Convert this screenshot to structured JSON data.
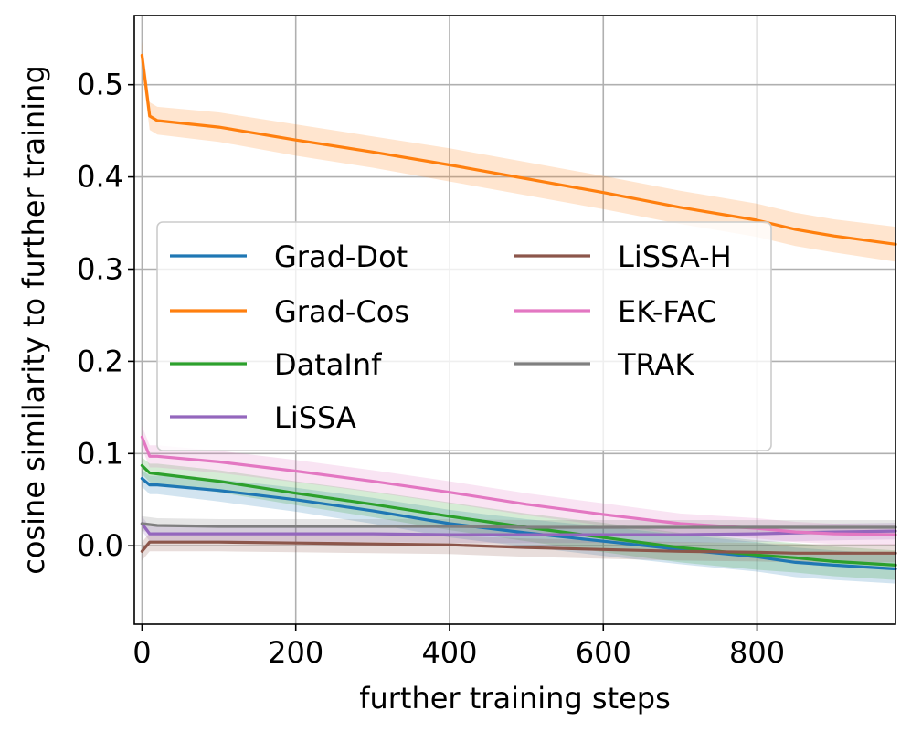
{
  "chart_data": {
    "type": "line",
    "title": "",
    "xlabel": "further training steps",
    "ylabel": "cosine similarity to further training",
    "xlim": [
      -10,
      980
    ],
    "ylim": [
      -0.085,
      0.575
    ],
    "xticks": [
      0,
      200,
      400,
      600,
      800
    ],
    "xtick_labels": [
      "0",
      "200",
      "400",
      "600",
      "800"
    ],
    "yticks": [
      0.0,
      0.1,
      0.2,
      0.3,
      0.4,
      0.5
    ],
    "ytick_labels": [
      "0.0",
      "0.1",
      "0.2",
      "0.3",
      "0.4",
      "0.5"
    ],
    "grid": true,
    "legend_position": "center-left",
    "series": [
      {
        "name": "Grad-Dot",
        "color": "#1f77b4",
        "x": [
          0,
          10,
          20,
          100,
          200,
          300,
          400,
          500,
          600,
          700,
          800,
          850,
          900,
          980
        ],
        "y": [
          0.073,
          0.066,
          0.066,
          0.06,
          0.05,
          0.038,
          0.024,
          0.014,
          0.005,
          -0.004,
          -0.012,
          -0.018,
          -0.021,
          -0.025
        ],
        "band": [
          0.009,
          0.01,
          0.01,
          0.012,
          0.013,
          0.014,
          0.015,
          0.015,
          0.016,
          0.016,
          0.016,
          0.016,
          0.016,
          0.016
        ]
      },
      {
        "name": "Grad-Cos",
        "color": "#ff7f0e",
        "x": [
          0,
          10,
          20,
          100,
          200,
          300,
          400,
          500,
          600,
          700,
          800,
          850,
          900,
          980
        ],
        "y": [
          0.532,
          0.466,
          0.461,
          0.454,
          0.44,
          0.427,
          0.413,
          0.398,
          0.383,
          0.367,
          0.353,
          0.343,
          0.336,
          0.327
        ],
        "band": [
          0.015,
          0.015,
          0.015,
          0.016,
          0.017,
          0.017,
          0.018,
          0.018,
          0.018,
          0.018,
          0.018,
          0.018,
          0.018,
          0.019
        ]
      },
      {
        "name": "DataInf",
        "color": "#2ca02c",
        "x": [
          0,
          10,
          20,
          100,
          200,
          300,
          400,
          500,
          600,
          700,
          800,
          850,
          900,
          980
        ],
        "y": [
          0.087,
          0.079,
          0.078,
          0.07,
          0.057,
          0.045,
          0.032,
          0.02,
          0.009,
          -0.002,
          -0.01,
          -0.013,
          -0.017,
          -0.021
        ],
        "band": [
          0.009,
          0.01,
          0.011,
          0.012,
          0.013,
          0.014,
          0.015,
          0.015,
          0.016,
          0.016,
          0.016,
          0.016,
          0.016,
          0.016
        ]
      },
      {
        "name": "LiSSA",
        "color": "#9467bd",
        "x": [
          0,
          10,
          20,
          100,
          200,
          300,
          400,
          500,
          600,
          700,
          800,
          850,
          900,
          980
        ],
        "y": [
          0.024,
          0.013,
          0.013,
          0.013,
          0.013,
          0.013,
          0.012,
          0.012,
          0.012,
          0.012,
          0.013,
          0.014,
          0.015,
          0.016
        ],
        "band": [
          0.008,
          0.008,
          0.008,
          0.008,
          0.009,
          0.009,
          0.009,
          0.009,
          0.009,
          0.009,
          0.009,
          0.009,
          0.009,
          0.009
        ]
      },
      {
        "name": "LiSSA-H",
        "color": "#8c564b",
        "x": [
          0,
          10,
          20,
          100,
          200,
          300,
          400,
          500,
          600,
          700,
          800,
          850,
          900,
          980
        ],
        "y": [
          -0.006,
          0.004,
          0.004,
          0.004,
          0.003,
          0.002,
          0.001,
          -0.002,
          -0.004,
          -0.006,
          -0.007,
          -0.008,
          -0.008,
          -0.008
        ],
        "band": [
          0.01,
          0.01,
          0.01,
          0.01,
          0.01,
          0.01,
          0.01,
          0.01,
          0.01,
          0.01,
          0.01,
          0.01,
          0.01,
          0.01
        ]
      },
      {
        "name": "EK-FAC",
        "color": "#e377c2",
        "x": [
          0,
          10,
          20,
          100,
          200,
          300,
          400,
          500,
          600,
          700,
          800,
          850,
          900,
          980
        ],
        "y": [
          0.118,
          0.097,
          0.097,
          0.091,
          0.081,
          0.07,
          0.058,
          0.045,
          0.034,
          0.024,
          0.019,
          0.015,
          0.013,
          0.012
        ],
        "band": [
          0.012,
          0.012,
          0.012,
          0.012,
          0.012,
          0.012,
          0.012,
          0.012,
          0.012,
          0.011,
          0.011,
          0.011,
          0.011,
          0.011
        ]
      },
      {
        "name": "TRAK",
        "color": "#7f7f7f",
        "x": [
          0,
          10,
          20,
          100,
          200,
          300,
          400,
          500,
          600,
          700,
          800,
          850,
          900,
          980
        ],
        "y": [
          0.024,
          0.023,
          0.022,
          0.021,
          0.021,
          0.021,
          0.021,
          0.02,
          0.02,
          0.02,
          0.02,
          0.02,
          0.02,
          0.02
        ],
        "band": [
          0.008,
          0.008,
          0.008,
          0.008,
          0.008,
          0.008,
          0.008,
          0.008,
          0.008,
          0.008,
          0.008,
          0.008,
          0.008,
          0.008
        ]
      }
    ]
  }
}
